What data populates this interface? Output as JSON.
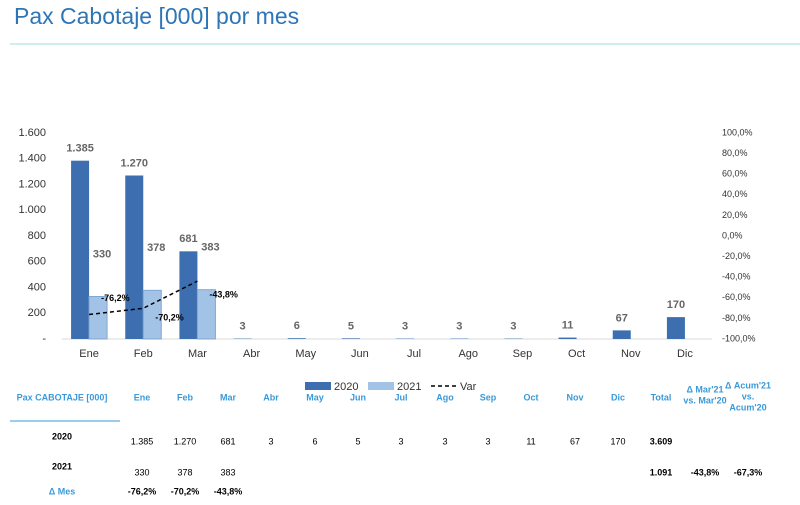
{
  "chart_data": {
    "type": "bar",
    "title": "Pax Cabotaje [000] por mes",
    "categories": [
      "Ene",
      "Feb",
      "Mar",
      "Abr",
      "May",
      "Jun",
      "Jul",
      "Ago",
      "Sep",
      "Oct",
      "Nov",
      "Dic"
    ],
    "series": [
      {
        "name": "2020",
        "type": "bar",
        "color": "#3d6fb0",
        "values": [
          1385,
          1270,
          681,
          3,
          6,
          5,
          3,
          3,
          3,
          11,
          67,
          170
        ],
        "value_labels": [
          "1.385",
          "1.270",
          "681",
          "3",
          "6",
          "5",
          "3",
          "3",
          "3",
          "11",
          "67",
          "170"
        ]
      },
      {
        "name": "2021",
        "type": "bar",
        "color": "#a3c3e6",
        "values": [
          330,
          378,
          383,
          null,
          null,
          null,
          null,
          null,
          null,
          null,
          null,
          null
        ],
        "value_labels": [
          "330",
          "378",
          "383",
          null,
          null,
          null,
          null,
          null,
          null,
          null,
          null,
          null
        ]
      },
      {
        "name": "Var",
        "type": "line",
        "axis": "y2",
        "color": "#000000",
        "dashed": true,
        "values": [
          -76.2,
          -70.2,
          -43.8,
          null,
          null,
          null,
          null,
          null,
          null,
          null,
          null,
          null
        ],
        "value_labels": [
          "-76,2%",
          "-70,2%",
          "-43,8%",
          null,
          null,
          null,
          null,
          null,
          null,
          null,
          null,
          null
        ]
      }
    ],
    "ylim": [
      0,
      1600
    ],
    "yticks": [
      {
        "value": 0,
        "label": "-"
      },
      200,
      400,
      600,
      800,
      {
        "value": 1000,
        "label": "1.000"
      },
      {
        "value": 1200,
        "label": "1.200"
      },
      {
        "value": 1400,
        "label": "1.400"
      },
      {
        "value": 1600,
        "label": "1.600"
      }
    ],
    "y2lim": [
      -100,
      100
    ],
    "y2ticks": [
      {
        "value": -100,
        "label": "-100,0%"
      },
      {
        "value": -80,
        "label": "-80,0%"
      },
      {
        "value": -60,
        "label": "-60,0%"
      },
      {
        "value": -40,
        "label": "-40,0%"
      },
      {
        "value": -20,
        "label": "-20,0%"
      },
      {
        "value": 0,
        "label": "0,0%"
      },
      {
        "value": 20,
        "label": "20,0%"
      },
      {
        "value": 40,
        "label": "40,0%"
      },
      {
        "value": 60,
        "label": "60,0%"
      },
      {
        "value": 80,
        "label": "80,0%"
      },
      {
        "value": 100,
        "label": "100,0%"
      }
    ],
    "grid": false,
    "legend": "bottom"
  },
  "table": {
    "header": [
      "Pax CABOTAJE [000]",
      "Ene",
      "Feb",
      "Mar",
      "Abr",
      "May",
      "Jun",
      "Jul",
      "Ago",
      "Sep",
      "Oct",
      "Nov",
      "Dic",
      "Total",
      [
        "Δ Mar'21",
        "vs. Mar'20"
      ],
      [
        "Δ Acum'21",
        "vs.",
        "Acum'20"
      ]
    ],
    "rows": [
      [
        "2020",
        "1.385",
        "1.270",
        "681",
        "3",
        "6",
        "5",
        "3",
        "3",
        "3",
        "11",
        "67",
        "170",
        "3.609",
        null,
        null
      ],
      [
        "2021",
        "330",
        "378",
        "383",
        null,
        null,
        null,
        null,
        null,
        null,
        null,
        null,
        null,
        "1.091",
        "-43,8%",
        "-67,3%"
      ],
      [
        "Δ Mes",
        "-76,2%",
        "-70,2%",
        "-43,8%",
        null,
        null,
        null,
        null,
        null,
        null,
        null,
        null,
        null,
        null,
        null,
        null
      ]
    ]
  }
}
